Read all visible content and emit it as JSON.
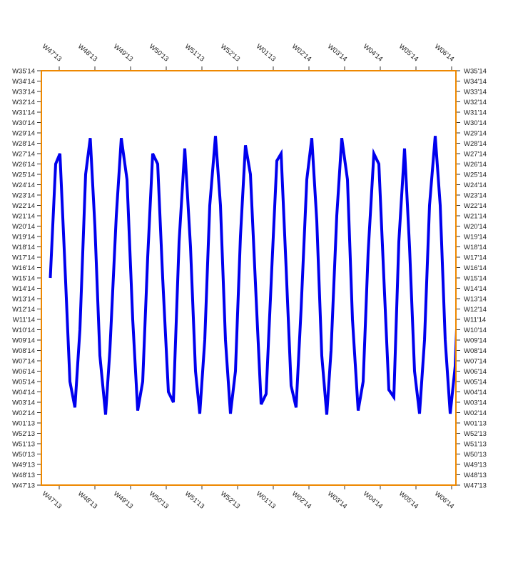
{
  "chart_data": {
    "type": "line",
    "title": "",
    "xlabel": "",
    "ylabel": "",
    "x_ticks": [
      "W47'13",
      "W48'13",
      "W49'13",
      "W50'13",
      "W51'13",
      "W52'13",
      "W01'13",
      "W02'14",
      "W03'14",
      "W04'14",
      "W05'14",
      "W06'14"
    ],
    "y_ticks": [
      "W47'13",
      "W48'13",
      "W49'13",
      "W50'13",
      "W51'13",
      "W52'13",
      "W01'13",
      "W02'14",
      "W03'14",
      "W04'14",
      "W05'14",
      "W06'14",
      "W07'14",
      "W08'14",
      "W09'14",
      "W10'14",
      "W11'14",
      "W12'14",
      "W13'14",
      "W14'14",
      "W15'14",
      "W16'14",
      "W17'14",
      "W18'14",
      "W19'14",
      "W20'14",
      "W21'14",
      "W22'14",
      "W23'14",
      "W24'14",
      "W25'14",
      "W26'14",
      "W27'14",
      "W28'14",
      "W29'14",
      "W30'14",
      "W31'14",
      "W32'14",
      "W33'14",
      "W34'14",
      "W35'14"
    ],
    "x_range_weeks": [
      0,
      11.6
    ],
    "y_range_index": [
      0,
      40
    ],
    "grid": false,
    "series": [
      {
        "name": "series-1",
        "color": "#0000ee",
        "points": [
          [
            -0.25,
            20
          ],
          [
            -0.1,
            31
          ],
          [
            0.02,
            32
          ],
          [
            0.15,
            22
          ],
          [
            0.3,
            10
          ],
          [
            0.44,
            7.5
          ],
          [
            0.58,
            15
          ],
          [
            0.74,
            30
          ],
          [
            0.87,
            33.5
          ],
          [
            1.0,
            25
          ],
          [
            1.14,
            12.5
          ],
          [
            1.3,
            6.8
          ],
          [
            1.42,
            13
          ],
          [
            1.6,
            26
          ],
          [
            1.74,
            33.5
          ],
          [
            1.9,
            29.5
          ],
          [
            2.06,
            16
          ],
          [
            2.2,
            7.2
          ],
          [
            2.34,
            10
          ],
          [
            2.48,
            22
          ],
          [
            2.62,
            32
          ],
          [
            2.76,
            31
          ],
          [
            2.9,
            20
          ],
          [
            3.06,
            9
          ],
          [
            3.2,
            8
          ],
          [
            3.36,
            23.5
          ],
          [
            3.52,
            32.5
          ],
          [
            3.68,
            23
          ],
          [
            3.82,
            11
          ],
          [
            3.94,
            6.9
          ],
          [
            4.08,
            14
          ],
          [
            4.22,
            27
          ],
          [
            4.38,
            33.7
          ],
          [
            4.52,
            27
          ],
          [
            4.66,
            14
          ],
          [
            4.8,
            6.9
          ],
          [
            4.94,
            11
          ],
          [
            5.08,
            24
          ],
          [
            5.22,
            32.8
          ],
          [
            5.36,
            30
          ],
          [
            5.52,
            18
          ],
          [
            5.66,
            7.8
          ],
          [
            5.8,
            8.8
          ],
          [
            5.96,
            21
          ],
          [
            6.1,
            31.3
          ],
          [
            6.22,
            32
          ],
          [
            6.36,
            21
          ],
          [
            6.5,
            9.6
          ],
          [
            6.64,
            7.5
          ],
          [
            6.78,
            17
          ],
          [
            6.94,
            29.5
          ],
          [
            7.08,
            33.5
          ],
          [
            7.22,
            25.5
          ],
          [
            7.36,
            12.5
          ],
          [
            7.5,
            6.8
          ],
          [
            7.62,
            13
          ],
          [
            7.78,
            26
          ],
          [
            7.92,
            33.5
          ],
          [
            8.08,
            29.5
          ],
          [
            8.22,
            16
          ],
          [
            8.38,
            7.2
          ],
          [
            8.52,
            10
          ],
          [
            8.66,
            22.5
          ],
          [
            8.82,
            32
          ],
          [
            8.96,
            31
          ],
          [
            9.1,
            20
          ],
          [
            9.24,
            9.2
          ],
          [
            9.38,
            8.5
          ],
          [
            9.52,
            23.5
          ],
          [
            9.68,
            32.5
          ],
          [
            9.82,
            23
          ],
          [
            9.96,
            11
          ],
          [
            10.1,
            6.9
          ],
          [
            10.24,
            14
          ],
          [
            10.38,
            27
          ],
          [
            10.54,
            33.7
          ],
          [
            10.68,
            27
          ],
          [
            10.82,
            14
          ],
          [
            10.96,
            6.9
          ],
          [
            11.1,
            11.5
          ],
          [
            11.24,
            24
          ],
          [
            11.38,
            33
          ],
          [
            11.52,
            29.5
          ],
          [
            11.66,
            18
          ],
          [
            11.8,
            7.8
          ],
          [
            11.9,
            8.6
          ],
          [
            12.02,
            10
          ]
        ]
      }
    ]
  },
  "style": {
    "frame_color": "#ee8800",
    "line_color": "#0000ee",
    "tick_color": "#333333"
  }
}
